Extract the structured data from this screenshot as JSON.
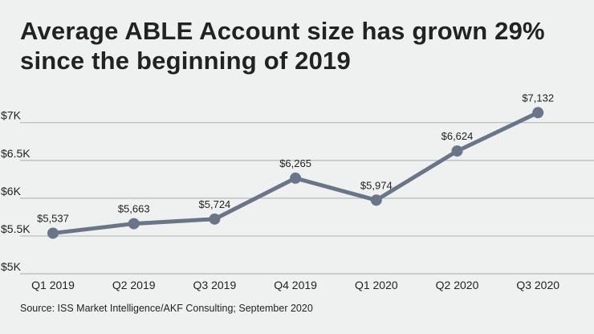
{
  "chart_data": {
    "type": "line",
    "title": "Average ABLE Account size has grown 29% since the beginning of 2019",
    "categories": [
      "Q1 2019",
      "Q2 2019",
      "Q3 2019",
      "Q4 2019",
      "Q1 2020",
      "Q2 2020",
      "Q3 2020"
    ],
    "values": [
      5537,
      5663,
      5724,
      6265,
      5974,
      6624,
      7132
    ],
    "data_labels": [
      "$5,537",
      "$5,663",
      "$5,724",
      "$6,265",
      "$5,974",
      "$6,624",
      "$7,132"
    ],
    "y_ticks": [
      5000,
      5500,
      6000,
      6500,
      7000
    ],
    "y_tick_labels": [
      "$5K",
      "$5.5K",
      "$6K",
      "$6.5K",
      "$7K"
    ],
    "ylim": [
      5000,
      7000
    ],
    "xlabel": "",
    "ylabel": "",
    "grid": true,
    "line_color": "#6b7588",
    "source": "Source: ISS Market Intelligence/AKF Consulting; September 2020"
  }
}
